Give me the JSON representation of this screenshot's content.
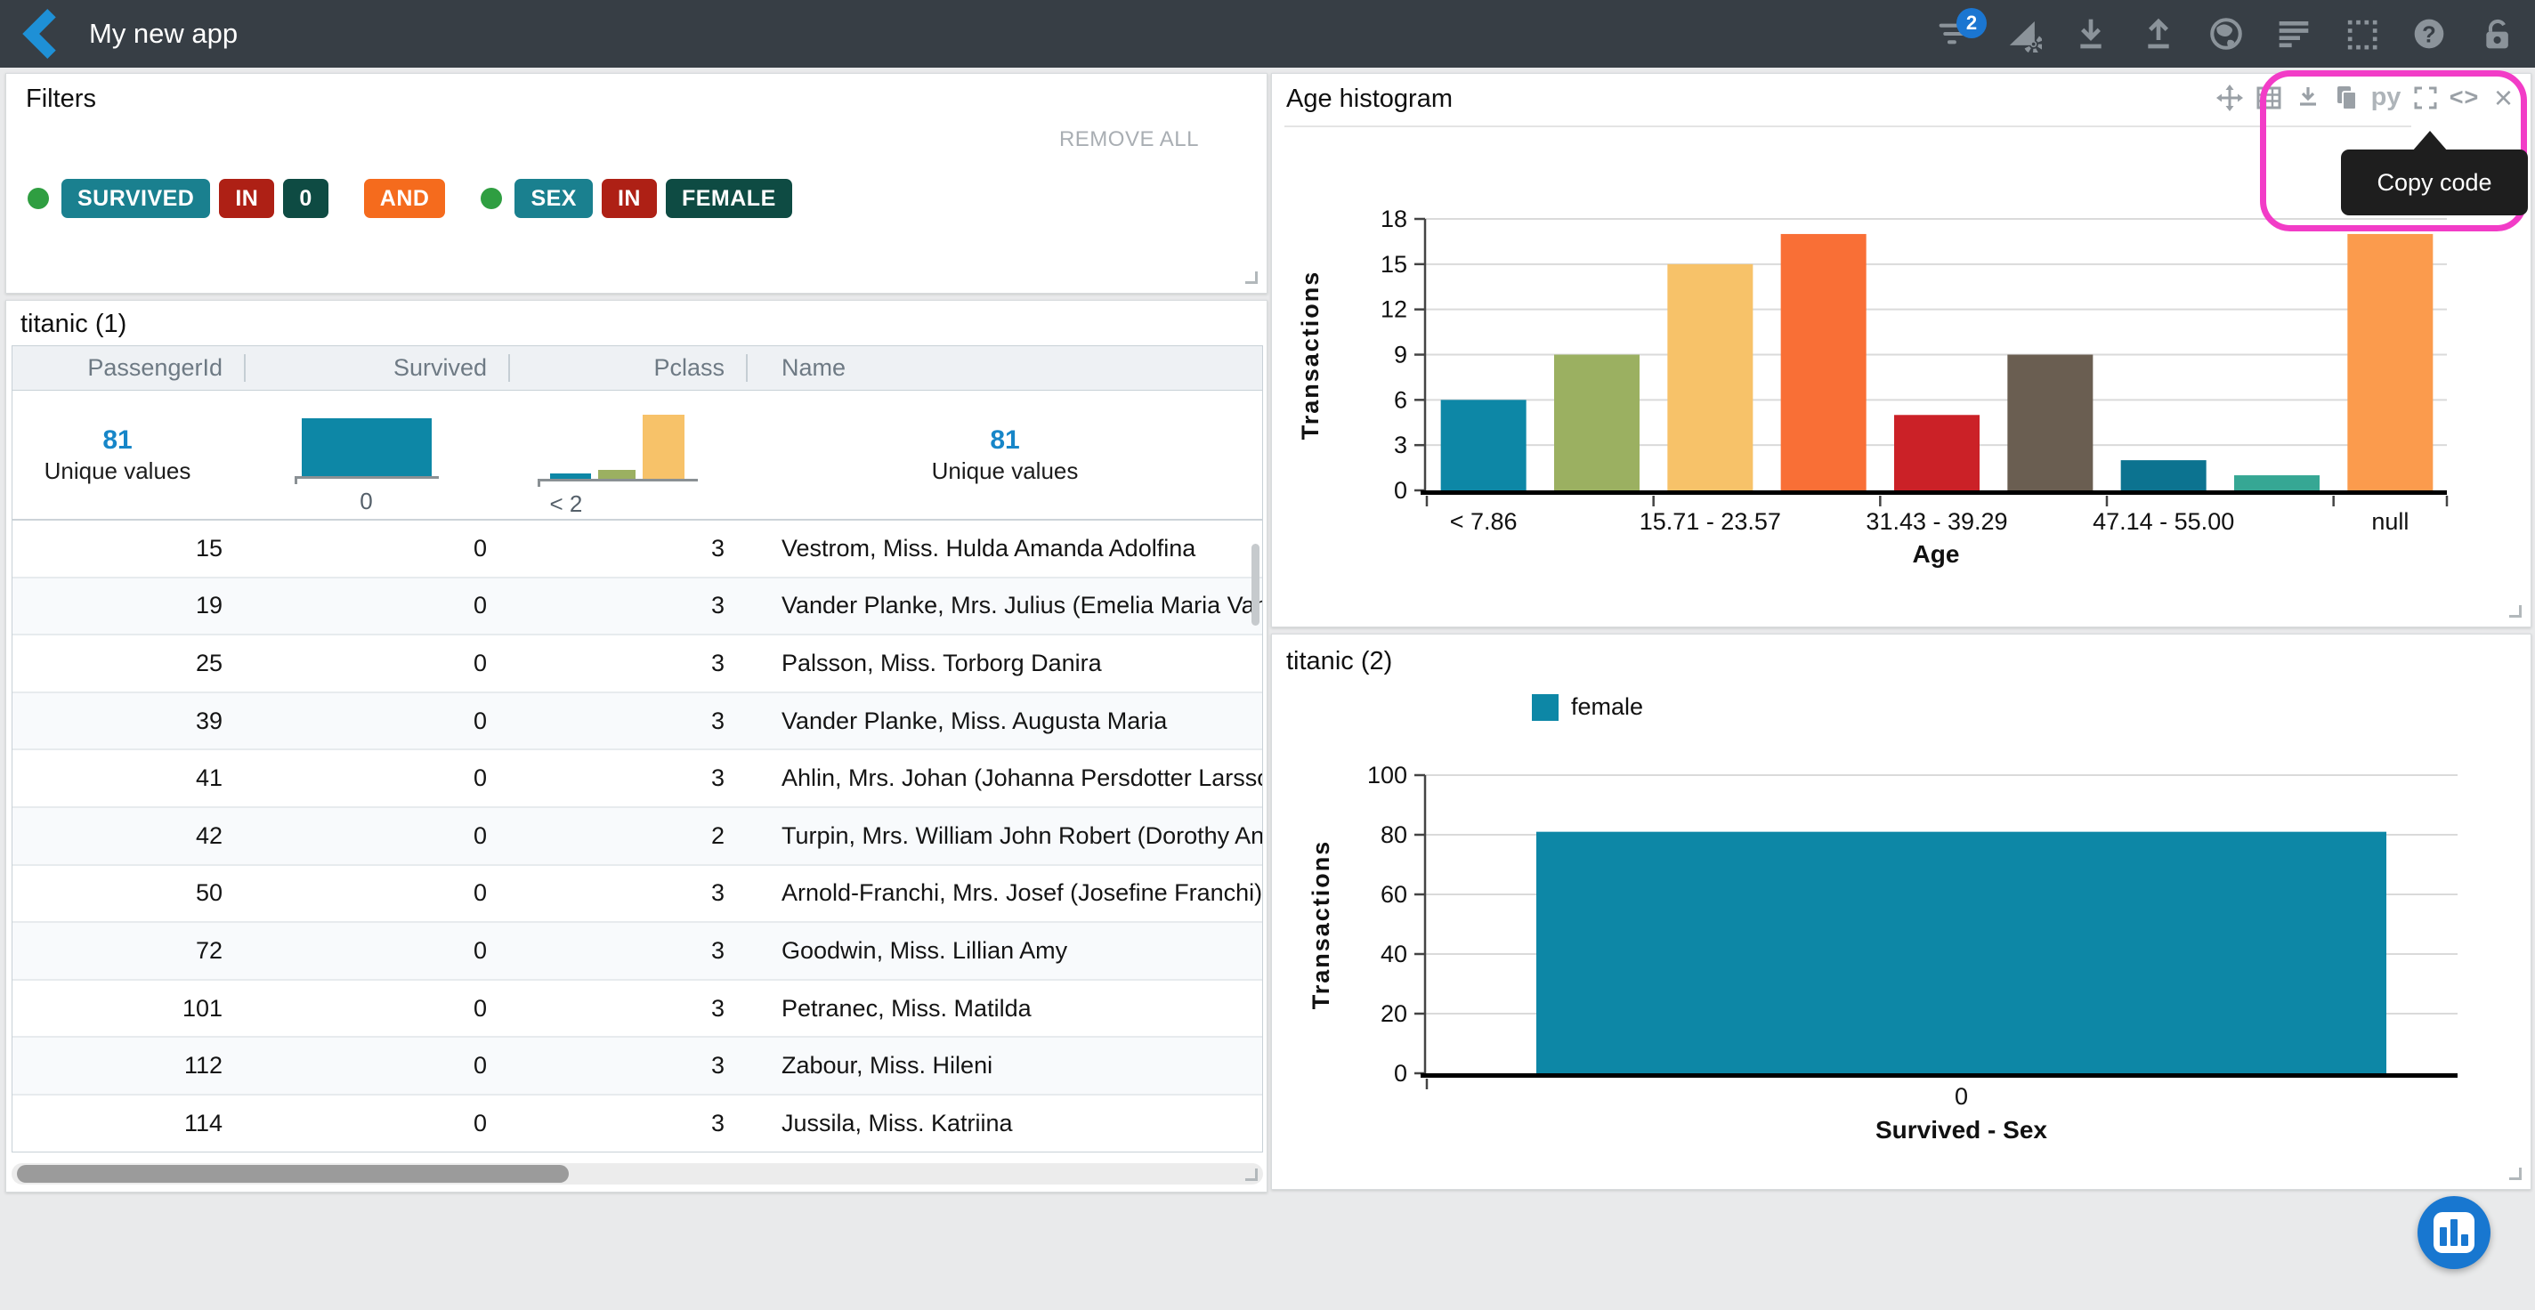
{
  "navbar": {
    "title": "My new app",
    "badge_count": "2"
  },
  "filters": {
    "title": "Filters",
    "remove_all": "REMOVE ALL",
    "chips": [
      {
        "kind": "dot"
      },
      {
        "kind": "field",
        "label": "SURVIVED"
      },
      {
        "kind": "op",
        "label": "IN"
      },
      {
        "kind": "value",
        "label": "0"
      },
      {
        "kind": "spacer"
      },
      {
        "kind": "conj",
        "label": "AND"
      },
      {
        "kind": "spacer"
      },
      {
        "kind": "dot"
      },
      {
        "kind": "field",
        "label": "SEX"
      },
      {
        "kind": "op",
        "label": "IN"
      },
      {
        "kind": "value",
        "label": "FEMALE"
      }
    ],
    "colors": {
      "field": "#1a808f",
      "op": "#ae2015",
      "value": "#0e4b43",
      "conj": "#f56b1d",
      "dot": "#2f9e41"
    }
  },
  "table": {
    "title": "titanic (1)",
    "columns": [
      "PassengerId",
      "Survived",
      "Pclass",
      "Name"
    ],
    "stats": {
      "passenger_unique": "81",
      "unique_label": "Unique values",
      "name_unique": "81",
      "survived_hist": {
        "bars": [
          {
            "color": "#0d87a6",
            "h": 65,
            "w": 146
          }
        ],
        "axis_w": 162,
        "label": "0",
        "label_align": "center"
      },
      "pclass_hist": {
        "bars": [
          {
            "color": "#0d87a6",
            "h": 6,
            "w": 46
          },
          {
            "color": "#9bb061",
            "h": 10,
            "w": 42
          },
          {
            "color": "#f7c269",
            "h": 72,
            "w": 47
          }
        ],
        "axis_w": 180,
        "label": "< 2",
        "label_align": "left"
      }
    },
    "rows": [
      [
        "15",
        "0",
        "3",
        "Vestrom, Miss. Hulda Amanda Adolfina"
      ],
      [
        "19",
        "0",
        "3",
        "Vander Planke, Mrs. Julius (Emelia Maria Vandem"
      ],
      [
        "25",
        "0",
        "3",
        "Palsson, Miss. Torborg Danira"
      ],
      [
        "39",
        "0",
        "3",
        "Vander Planke, Miss. Augusta Maria"
      ],
      [
        "41",
        "0",
        "3",
        "Ahlin, Mrs. Johan (Johanna Persdotter Larsson)"
      ],
      [
        "42",
        "0",
        "2",
        "Turpin, Mrs. William John Robert (Dorothy Ann W"
      ],
      [
        "50",
        "0",
        "3",
        "Arnold-Franchi, Mrs. Josef (Josefine Franchi)"
      ],
      [
        "72",
        "0",
        "3",
        "Goodwin, Miss. Lillian Amy"
      ],
      [
        "101",
        "0",
        "3",
        "Petranec, Miss. Matilda"
      ],
      [
        "112",
        "0",
        "3",
        "Zabour, Miss. Hileni"
      ],
      [
        "114",
        "0",
        "3",
        "Jussila, Miss. Katriina"
      ]
    ]
  },
  "age_panel": {
    "title": "Age histogram",
    "tooltip": "Copy code",
    "toolbar": {
      "python": "py",
      "code": "<>",
      "close": "×"
    },
    "annotation_color": "#f23cc7"
  },
  "titanic2_panel": {
    "title": "titanic (2)",
    "legend": "female"
  },
  "chart_data": [
    {
      "type": "bar",
      "title": "Age histogram",
      "xlabel": "Age",
      "ylabel": "Transactions",
      "categories": [
        "< 7.86",
        "",
        "15.71 - 23.57",
        "",
        "31.43 - 39.29",
        "",
        "47.14 - 55.00",
        "",
        "null"
      ],
      "values": [
        6,
        9,
        15,
        17,
        5,
        9,
        2,
        1,
        17
      ],
      "bar_colors": [
        "#0d87a6",
        "#9bb061",
        "#f7c269",
        "#f96f36",
        "#cb2127",
        "#6a5e51",
        "#0c7390",
        "#36a794",
        "#fb9b4d"
      ],
      "x_tick_labels": [
        "< 7.86",
        "15.71 - 23.57",
        "31.43 - 39.29",
        "47.14 - 55.00",
        "null"
      ],
      "yticks": [
        0,
        3,
        6,
        9,
        12,
        15,
        18
      ],
      "ylim": [
        0,
        18
      ],
      "grid": true,
      "legend_position": "none"
    },
    {
      "type": "bar",
      "title": "titanic (2)",
      "xlabel": "Survived - Sex",
      "ylabel": "Transactions",
      "categories": [
        "0"
      ],
      "series": [
        {
          "name": "female",
          "values": [
            81
          ]
        }
      ],
      "bar_color": "#0d87a6",
      "yticks": [
        0,
        20,
        40,
        60,
        80,
        100
      ],
      "ylim": [
        0,
        100
      ],
      "grid": true,
      "legend_position": "top-left"
    }
  ]
}
